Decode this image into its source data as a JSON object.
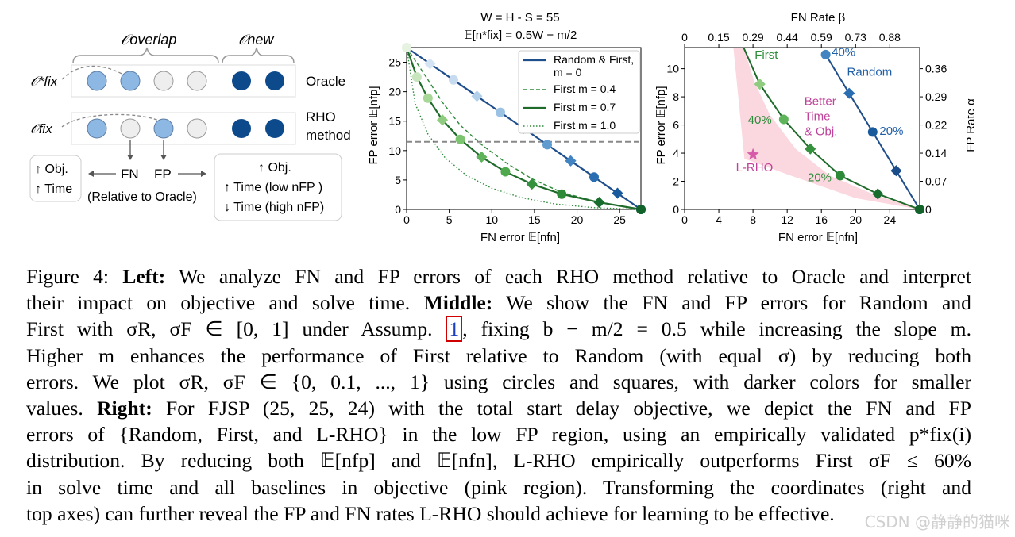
{
  "left_panel": {
    "o_overlap": "𝒪overlap",
    "o_new": "𝒪new",
    "o_fix_star": "𝒪*fix",
    "o_fix": "𝒪fix",
    "oracle_label": "Oracle",
    "rho_label_1": "RHO",
    "rho_label_2": "method",
    "fn_label": "FN",
    "fp_label": "FP",
    "relative_label": "(Relative to Oracle)",
    "left_box": [
      "↑ Obj.",
      "↑ Time"
    ],
    "right_box": [
      "↑ Obj.",
      "↑ Time (low nFP )",
      "↓ Time (high nFP)"
    ]
  },
  "chart_data": [
    {
      "type": "line",
      "title": "W = H - S = 55",
      "subtitle": "𝔼[n*fix] = 0.5W − m/2",
      "xlabel": "FN error 𝔼[nfn]",
      "ylabel": "FP error 𝔼[nfp]",
      "xlim": [
        0,
        27.5
      ],
      "ylim": [
        0,
        27.5
      ],
      "xticks": [
        0,
        5,
        10,
        15,
        20,
        25
      ],
      "yticks": [
        0,
        5,
        10,
        15,
        20,
        25
      ],
      "hline": 11.5,
      "legend_position": "top-right",
      "series": [
        {
          "name": "Random & First, m = 0",
          "color": "#1f4e8c",
          "style": "solid",
          "x": [
            0,
            2.75,
            5.5,
            8.25,
            11,
            13.75,
            16.5,
            19.25,
            22,
            24.75,
            27.5
          ],
          "y": [
            27.5,
            24.75,
            22,
            19.25,
            16.5,
            13.75,
            11,
            8.25,
            5.5,
            2.75,
            0
          ]
        },
        {
          "name": "First m = 0.4",
          "color": "#2e8b3a",
          "style": "dashed",
          "x": [
            0,
            2.2,
            4.2,
            6.3,
            8.8,
            11.6,
            14.7,
            18.2,
            22.6,
            27.5
          ],
          "y": [
            27.5,
            22.7,
            18.2,
            14.3,
            11,
            8,
            5.2,
            2.9,
            1.2,
            0
          ]
        },
        {
          "name": "First m = 0.7",
          "color": "#1e6b2a",
          "style": "solid",
          "x": [
            0,
            1.2,
            2.5,
            4.2,
            6.3,
            8.8,
            11.6,
            14.7,
            18.2,
            22.6,
            27.5
          ],
          "y": [
            27.5,
            22.5,
            18.9,
            15.2,
            11.9,
            8.9,
            6.4,
            4.3,
            2.6,
            1.2,
            0
          ]
        },
        {
          "name": "First m = 1.0",
          "color": "#2e8b3a",
          "style": "dotted",
          "x": [
            0,
            1,
            2.5,
            4.5,
            7,
            10,
            13.5,
            17.5,
            22,
            27.5
          ],
          "y": [
            27.5,
            18,
            12.8,
            8.8,
            5.8,
            3.6,
            2,
            0.9,
            0.3,
            0
          ]
        }
      ],
      "markers": {
        "random": {
          "x": [
            0,
            2.75,
            5.5,
            8.25,
            11,
            13.75,
            16.5,
            19.25,
            22,
            24.75,
            27.5
          ],
          "y": [
            27.5,
            24.75,
            22,
            19.25,
            16.5,
            13.75,
            11,
            8.25,
            5.5,
            2.75,
            0
          ]
        },
        "first_circles": {
          "x": [
            0,
            1.2,
            2.5,
            6.3,
            11.6,
            18.2,
            27.5
          ],
          "y": [
            27.5,
            22.5,
            18.9,
            11.9,
            6.4,
            2.6,
            0
          ]
        },
        "first_squares": {
          "x": [
            4.2,
            8.8,
            14.7,
            22.6
          ],
          "y": [
            15.2,
            8.9,
            4.3,
            1.2
          ]
        }
      }
    },
    {
      "type": "line",
      "xlabel": "FN error 𝔼[nfn]",
      "ylabel": "FP error 𝔼[nfp]",
      "top_label": "FN Rate β",
      "right_label": "FP Rate α",
      "xlim": [
        0,
        27.5
      ],
      "ylim": [
        0,
        11.5
      ],
      "xticks": [
        0,
        4,
        8,
        12,
        16,
        20,
        24
      ],
      "yticks": [
        0,
        2,
        4,
        6,
        8,
        10
      ],
      "top_ticks": [
        "0",
        "0.15",
        "0.29",
        "0.44",
        "0.59",
        "0.73",
        "0.88"
      ],
      "right_ticks": [
        "0",
        "0.07",
        "0.14",
        "0.22",
        "0.29",
        "0.36"
      ],
      "series": [
        {
          "name": "Random",
          "color": "#1f4e8c",
          "x": [
            16.5,
            19.25,
            22,
            24.75,
            27.5
          ],
          "y": [
            11,
            8.25,
            5.5,
            2.75,
            0
          ]
        },
        {
          "name": "First",
          "color": "#1e6b2a",
          "x": [
            6.9,
            8.8,
            11.6,
            14.7,
            18.2,
            22.6,
            27.5
          ],
          "y": [
            11.5,
            8.9,
            6.4,
            4.3,
            2.4,
            1.1,
            0
          ]
        }
      ],
      "lrho": {
        "name": "L-RHO",
        "x": 8,
        "y": 3.9
      },
      "annotations": {
        "first": "First",
        "random": "Random",
        "better": [
          "Better",
          "Time",
          "& Obj."
        ],
        "lrho": "L-RHO",
        "random_40": "40%",
        "random_20": "20%",
        "first_40": "40%",
        "first_20": "20%"
      }
    }
  ],
  "caption": {
    "lines": [
      [
        "Figure 4: ",
        "Left:",
        " We analyze FN and FP errors of each RHO method relative to Oracle and interpret"
      ],
      [
        "their impact on objective and solve time. ",
        "Middle:",
        " We show the FN and FP errors for Random and"
      ],
      [
        "First with σR, σF ∈ [0, 1] under Assump. ",
        "1",
        ", fixing b − m/2 = 0.5 while increasing the slope m."
      ],
      [
        "Higher m enhances the performance of First relative to Random (with equal σ) by reducing both"
      ],
      [
        "errors.  We plot σR, σF ∈ {0, 0.1, ..., 1} using circles and squares, with darker colors for smaller"
      ],
      [
        "values. ",
        "Right:",
        " For FJSP (25, 25, 24) with the total start delay objective, we depict the FN and FP"
      ],
      [
        "errors of {Random, First, and L-RHO} in the low FP region, using an empirically validated p*fix(i)"
      ],
      [
        "distribution. By reducing both 𝔼[nfp] and 𝔼[nfn], L-RHO empirically outperforms First σF ≤ 60%"
      ],
      [
        "in solve time and all baselines in objective (pink region). Transforming the coordinates (right and"
      ],
      [
        "top axes) can further reveal the FP and FN rates L-RHO should achieve for learning to be effective."
      ]
    ]
  },
  "watermark": "CSDN @静静的猫咪"
}
